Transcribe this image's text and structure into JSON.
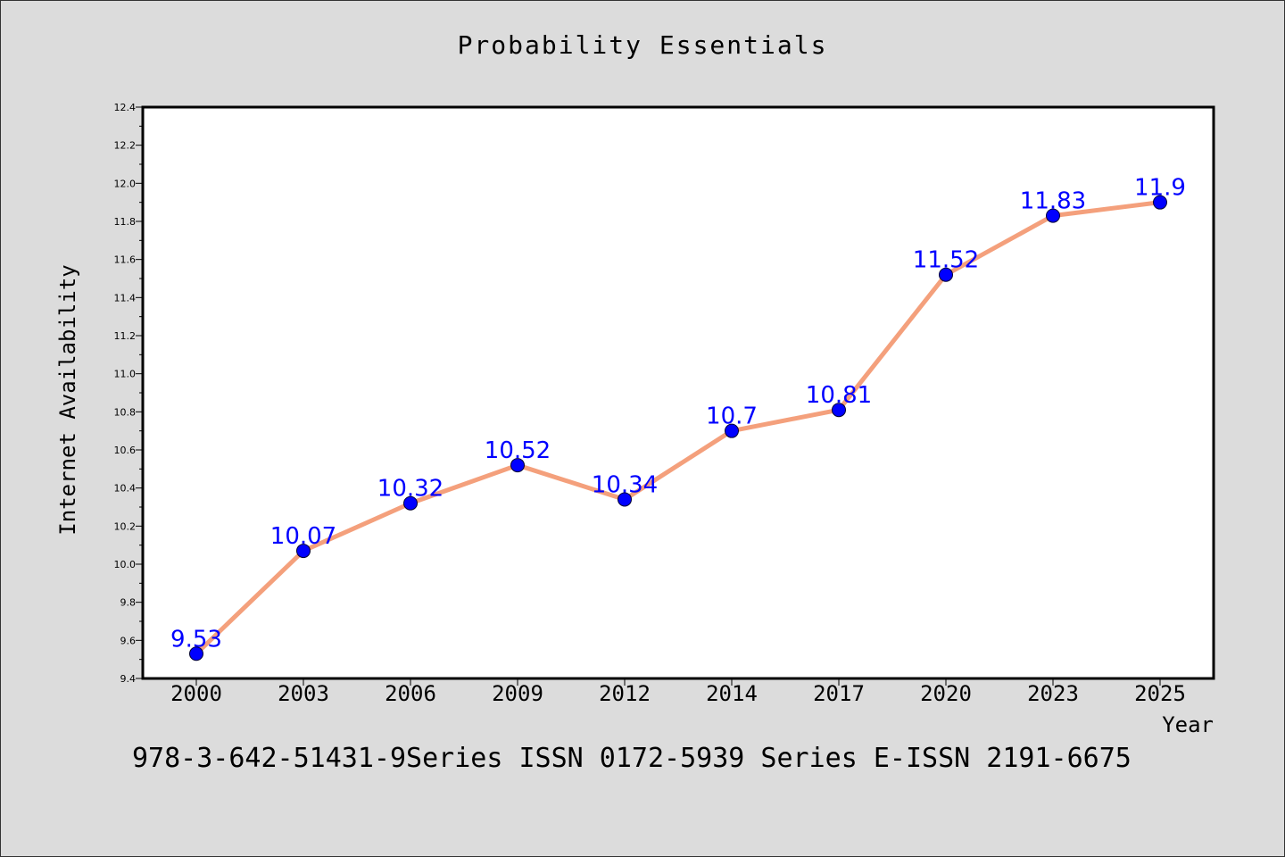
{
  "page": {
    "title": "Probability Essentials",
    "footer": "978-3-642-51431-9Series ISSN 0172-5939 Series E-ISSN 2191-6675",
    "background_color": "#dcdcdc"
  },
  "chart_data": {
    "type": "line",
    "title": "Probability Essentials",
    "xlabel": "Year",
    "ylabel": "Internet Availability",
    "categories": [
      "2000",
      "2003",
      "2006",
      "2009",
      "2012",
      "2014",
      "2017",
      "2020",
      "2023",
      "2025"
    ],
    "series": [
      {
        "values": [
          9.53,
          10.07,
          10.32,
          10.52,
          10.34,
          10.7,
          10.81,
          11.52,
          11.83,
          11.9
        ],
        "labels": [
          "9.53",
          "10.07",
          "10.32",
          "10.52",
          "10.34",
          "10.7",
          "10.81",
          "11.52",
          "11.83",
          "11.9"
        ],
        "line_color": "#f4a07c",
        "marker_color": "#0000ff",
        "label_color": "#0000ff"
      }
    ],
    "ylim": [
      9.4,
      12.4
    ],
    "yticks": [
      "9.4",
      "9.6",
      "9.8",
      "10.0",
      "10.2",
      "10.4",
      "10.6",
      "10.8",
      "11.0",
      "11.2",
      "11.4",
      "11.6",
      "11.8",
      "12.0",
      "12.2",
      "12.4"
    ],
    "grid": false,
    "legend": "none"
  }
}
